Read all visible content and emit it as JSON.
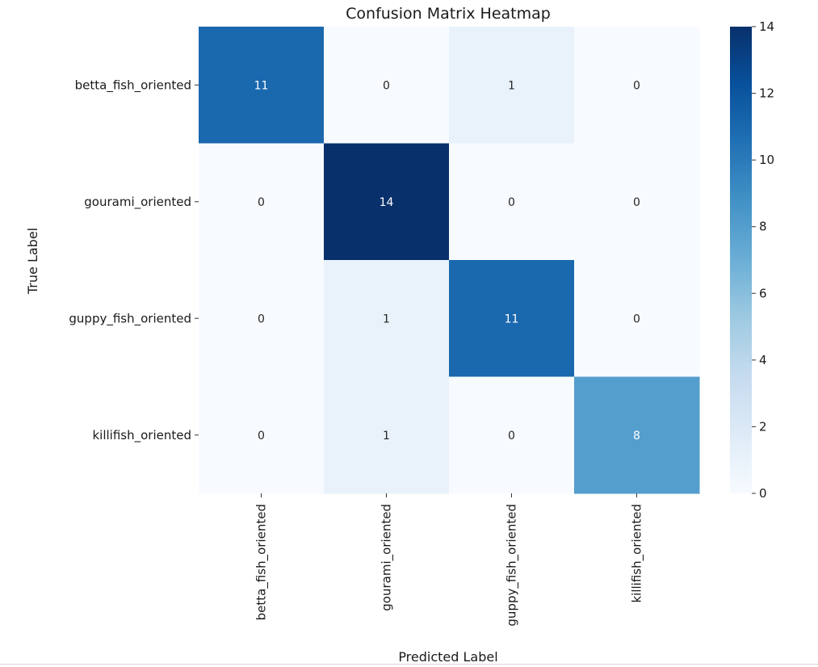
{
  "chart_data": {
    "type": "heatmap",
    "title": "Confusion Matrix Heatmap",
    "xlabel": "Predicted Label",
    "ylabel": "True Label",
    "x_categories": [
      "betta_fish_oriented",
      "gourami_oriented",
      "guppy_fish_oriented",
      "killifish_oriented"
    ],
    "y_categories": [
      "betta_fish_oriented",
      "gourami_oriented",
      "guppy_fish_oriented",
      "killifish_oriented"
    ],
    "values": [
      [
        11,
        0,
        1,
        0
      ],
      [
        0,
        14,
        0,
        0
      ],
      [
        0,
        1,
        11,
        0
      ],
      [
        0,
        1,
        0,
        8
      ]
    ],
    "colorbar": {
      "min": 0,
      "max": 14,
      "ticks": [
        0,
        2,
        4,
        6,
        8,
        10,
        12,
        14
      ],
      "colormap": "Blues"
    },
    "annotations": true
  }
}
